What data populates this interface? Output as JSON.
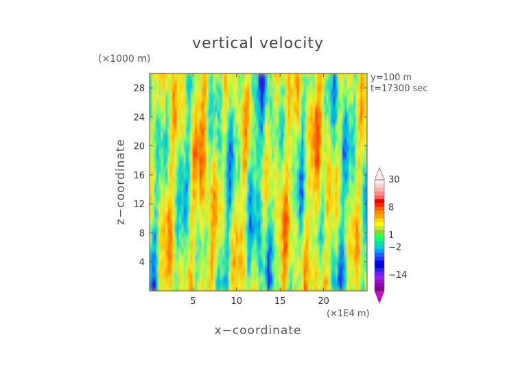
{
  "chart_data": {
    "type": "heatmap",
    "title": "vertical velocity",
    "xlabel": "x−coordinate",
    "ylabel": "z−coordinate",
    "x_unit": "(×1E4 m)",
    "y_unit": "(×1000 m)",
    "annotations": [
      "y=100 m",
      "t=17300 sec"
    ],
    "x_ticks": [
      5,
      10,
      15,
      20
    ],
    "y_ticks": [
      4,
      8,
      12,
      16,
      20,
      24,
      28
    ],
    "xlim": [
      0,
      25
    ],
    "ylim": [
      0,
      30
    ],
    "colorbar": {
      "tick_labels": [
        "30",
        "8",
        "1",
        "−2",
        "−14"
      ],
      "tick_values": [
        30,
        8,
        1,
        -2,
        -14
      ],
      "levels": [
        -30,
        -26,
        -22,
        -18,
        -14,
        -12,
        -10,
        -8,
        -6,
        -4,
        -3,
        -2,
        -1,
        0,
        1,
        2,
        3,
        4,
        5,
        6,
        7,
        8,
        10,
        12,
        14,
        18,
        22,
        26,
        30
      ],
      "colors": [
        "#8b008b",
        "#9400b0",
        "#9a10c8",
        "#a020f0",
        "#7020f0",
        "#3020e0",
        "#0000cd",
        "#0000ff",
        "#1a3cff",
        "#2060ff",
        "#00a0ff",
        "#00ced1",
        "#00e0a0",
        "#00ff7f",
        "#40ff40",
        "#9acd32",
        "#c8e632",
        "#ffff00",
        "#ffd700",
        "#ffa500",
        "#ff8c00",
        "#ff6000",
        "#ff2000",
        "#e00000",
        "#ff6060",
        "#ff8c8c",
        "#ffb0b0",
        "#ffd0d0",
        "#ffe8e8"
      ]
    },
    "field_colors": [
      "#2020d0",
      "#1a3cff",
      "#00b4e6",
      "#00ced1",
      "#30e8a0",
      "#80ff60",
      "#c8f03c",
      "#f0f030",
      "#ffd000",
      "#ffa500",
      "#ff7a00",
      "#ff4000"
    ],
    "grid": false
  }
}
